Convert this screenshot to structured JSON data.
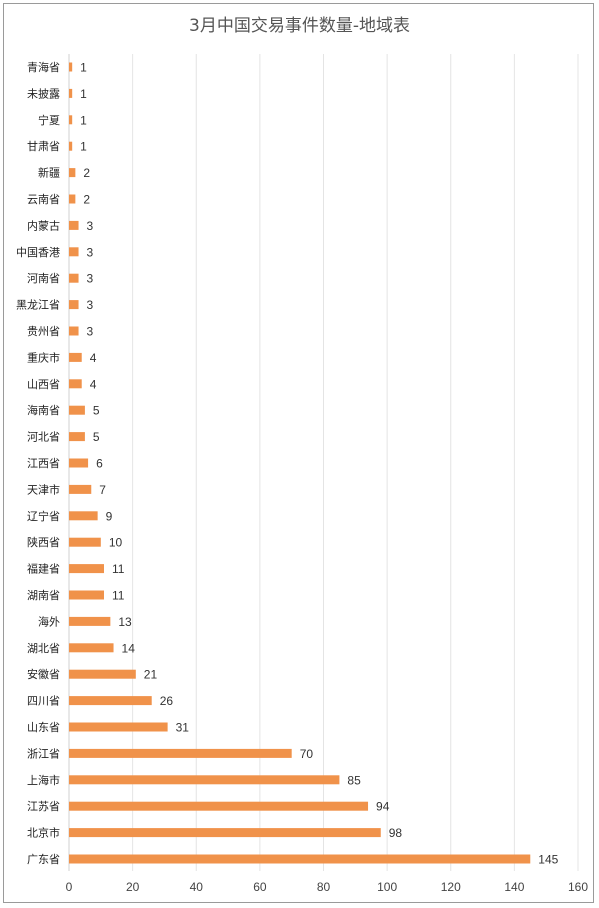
{
  "chart_data": {
    "type": "bar",
    "orientation": "horizontal",
    "title": "3月中国交易事件数量-地域表",
    "xlabel": "",
    "ylabel": "",
    "categories": [
      "青海省",
      "未披露",
      "宁夏",
      "甘肃省",
      "新疆",
      "云南省",
      "内蒙古",
      "中国香港",
      "河南省",
      "黑龙江省",
      "贵州省",
      "重庆市",
      "山西省",
      "海南省",
      "河北省",
      "江西省",
      "天津市",
      "辽宁省",
      "陕西省",
      "福建省",
      "湖南省",
      "海外",
      "湖北省",
      "安徽省",
      "四川省",
      "山东省",
      "浙江省",
      "上海市",
      "江苏省",
      "北京市",
      "广东省"
    ],
    "values": [
      1,
      1,
      1,
      1,
      2,
      2,
      3,
      3,
      3,
      3,
      3,
      4,
      4,
      5,
      5,
      6,
      7,
      9,
      10,
      11,
      11,
      13,
      14,
      21,
      26,
      31,
      70,
      85,
      94,
      98,
      145
    ],
    "xlim": [
      0,
      160
    ],
    "xticks": [
      0,
      20,
      40,
      60,
      80,
      100,
      120,
      140,
      160
    ],
    "grid": true,
    "data_labels": true,
    "bar_color": "#F0924A",
    "grid_color": "#e4e4e4"
  }
}
